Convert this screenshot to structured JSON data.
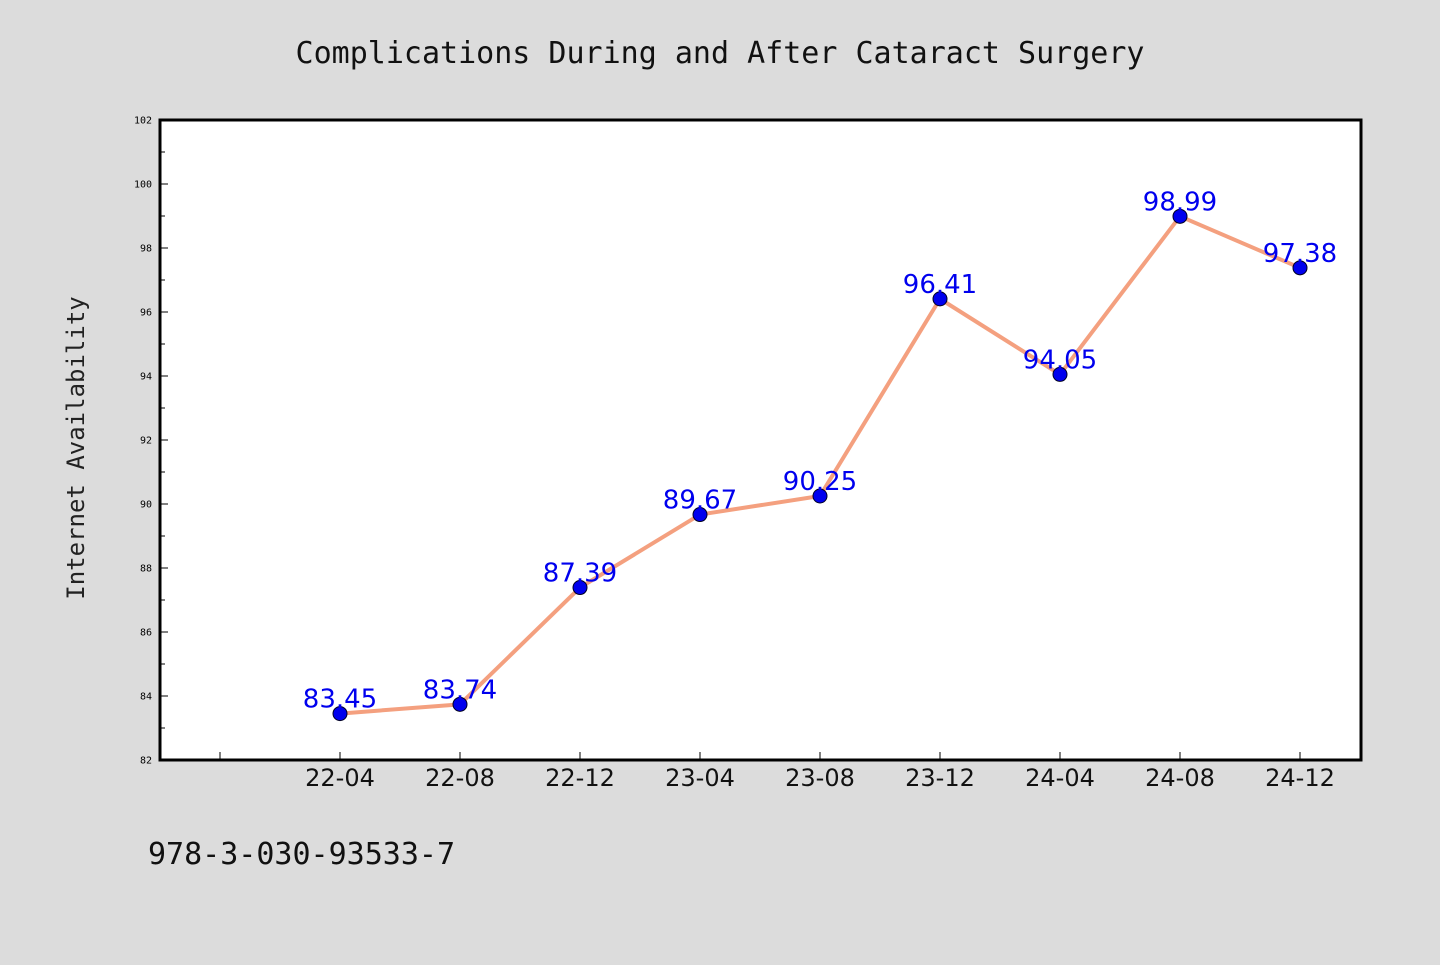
{
  "chart_data": {
    "type": "line",
    "title": "Complications During and After Cataract Surgery",
    "xlabel": "",
    "ylabel": "Internet Availability",
    "categories": [
      "22-04",
      "22-08",
      "22-12",
      "23-04",
      "23-08",
      "23-12",
      "24-04",
      "24-08",
      "24-12"
    ],
    "series": [
      {
        "values": [
          83.45,
          83.74,
          87.39,
          89.67,
          90.25,
          96.41,
          94.05,
          98.99,
          97.38
        ],
        "data_labels": [
          "83.45",
          "83.74",
          "87.39",
          "89.67",
          "90.25",
          "96.41",
          "94.05",
          "98.99",
          "97.38"
        ],
        "line_color": "#f4a07f",
        "marker_color": "#0000ee",
        "label_color": "#0000ee"
      }
    ],
    "ylim": [
      82,
      102
    ],
    "yticks": [
      "82",
      "84",
      "86",
      "88",
      "90",
      "92",
      "94",
      "96",
      "98",
      "100",
      "102"
    ],
    "grid": false,
    "legend": "none"
  },
  "footnote": "978-3-030-93533-7",
  "colors": {
    "background": "#dcdcdc",
    "plot_background": "#ffffff",
    "frame": "#000000"
  }
}
